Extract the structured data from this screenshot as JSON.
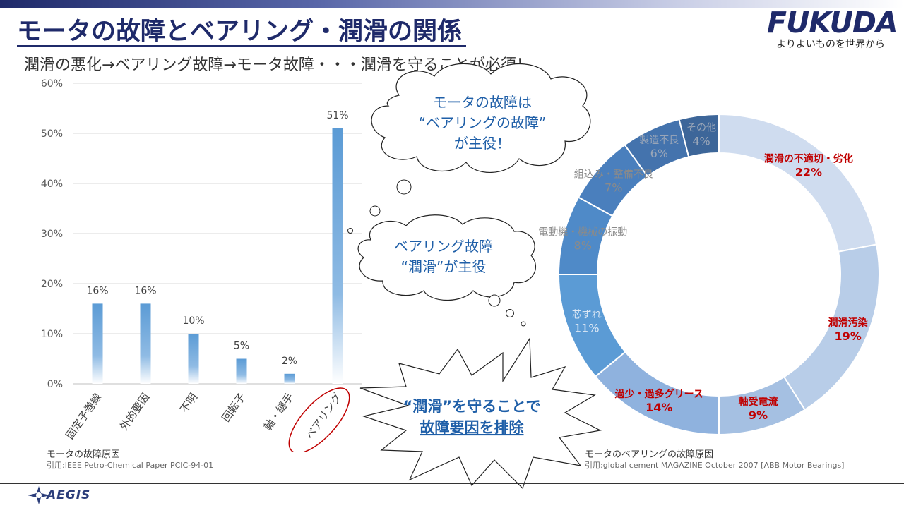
{
  "header": {
    "title": "モータの故障とベアリング・潤滑の関係",
    "subtitle": "潤滑の悪化→ベアリング故障→モータ故障・・・潤滑を守ることが必須！"
  },
  "brand": {
    "logo_text": "FUKUDA",
    "tagline": "よりよいものを世界から",
    "footer_logo_text": "AEGIS",
    "primary_color": "#1f2a6a"
  },
  "bar_caption": {
    "title": "モータの故障原因",
    "source": "引用:IEEE Petro-Chemical Paper PCIC-94-01"
  },
  "donut_caption": {
    "title": "モータのベアリングの故障原因",
    "source": "引用:global cement MAGAZINE October 2007 [ABB Motor Bearings]"
  },
  "callouts": {
    "cloud_top": [
      "モータの故障は",
      "“ベアリングの故障”",
      "が主役！"
    ],
    "cloud_middle": [
      "ベアリング故障",
      "“潤滑”が主役"
    ],
    "burst": [
      "“潤滑”を守ることで",
      "故障要因を排除"
    ]
  },
  "chart_data": [
    {
      "type": "bar",
      "title": "",
      "categories": [
        "固定子巻線",
        "外的要因",
        "不明",
        "回転子",
        "軸・継手",
        "ベアリング"
      ],
      "values": [
        16,
        16,
        10,
        5,
        2,
        51
      ],
      "value_labels": [
        "16%",
        "16%",
        "10%",
        "5%",
        "2%",
        "51%"
      ],
      "ylim": [
        0,
        60
      ],
      "yticks": [
        0,
        10,
        20,
        30,
        40,
        50,
        60
      ],
      "ytick_labels": [
        "0%",
        "10%",
        "20%",
        "30%",
        "40%",
        "50%",
        "60%"
      ],
      "grid": true,
      "highlight_category": "ベアリング",
      "bar_color": "#5b9bd5"
    },
    {
      "type": "pie",
      "title": "",
      "donut": true,
      "slices": [
        {
          "label": "潤滑の不適切・劣化",
          "value": 22,
          "value_label": "22%",
          "color": "#cfdcef",
          "label_color": "#c00000"
        },
        {
          "label": "潤滑汚染",
          "value": 19,
          "value_label": "19%",
          "color": "#b8cde8",
          "label_color": "#c00000"
        },
        {
          "label": "軸受電流",
          "value": 9,
          "value_label": "9%",
          "color": "#a5c0e2",
          "label_color": "#c00000"
        },
        {
          "label": "過少・過多グリース",
          "value": 14,
          "value_label": "14%",
          "color": "#8fb2de",
          "label_color": "#c00000"
        },
        {
          "label": "芯ずれ",
          "value": 11,
          "value_label": "11%",
          "color": "#5b9bd5",
          "label_color": "#dde8f5"
        },
        {
          "label": "電動機・機械の振動",
          "value": 8,
          "value_label": "8%",
          "color": "#4f8ac8",
          "label_color": "#8a8a8a"
        },
        {
          "label": "組込み・整備不良",
          "value": 7,
          "value_label": "7%",
          "color": "#4a7fbd",
          "label_color": "#8a8a8a"
        },
        {
          "label": "製造不良",
          "value": 6,
          "value_label": "6%",
          "color": "#4473ad",
          "label_color": "#9aa6b8"
        },
        {
          "label": "その他",
          "value": 4,
          "value_label": "4%",
          "color": "#3d6699",
          "label_color": "#9aa6b8"
        }
      ]
    }
  ]
}
